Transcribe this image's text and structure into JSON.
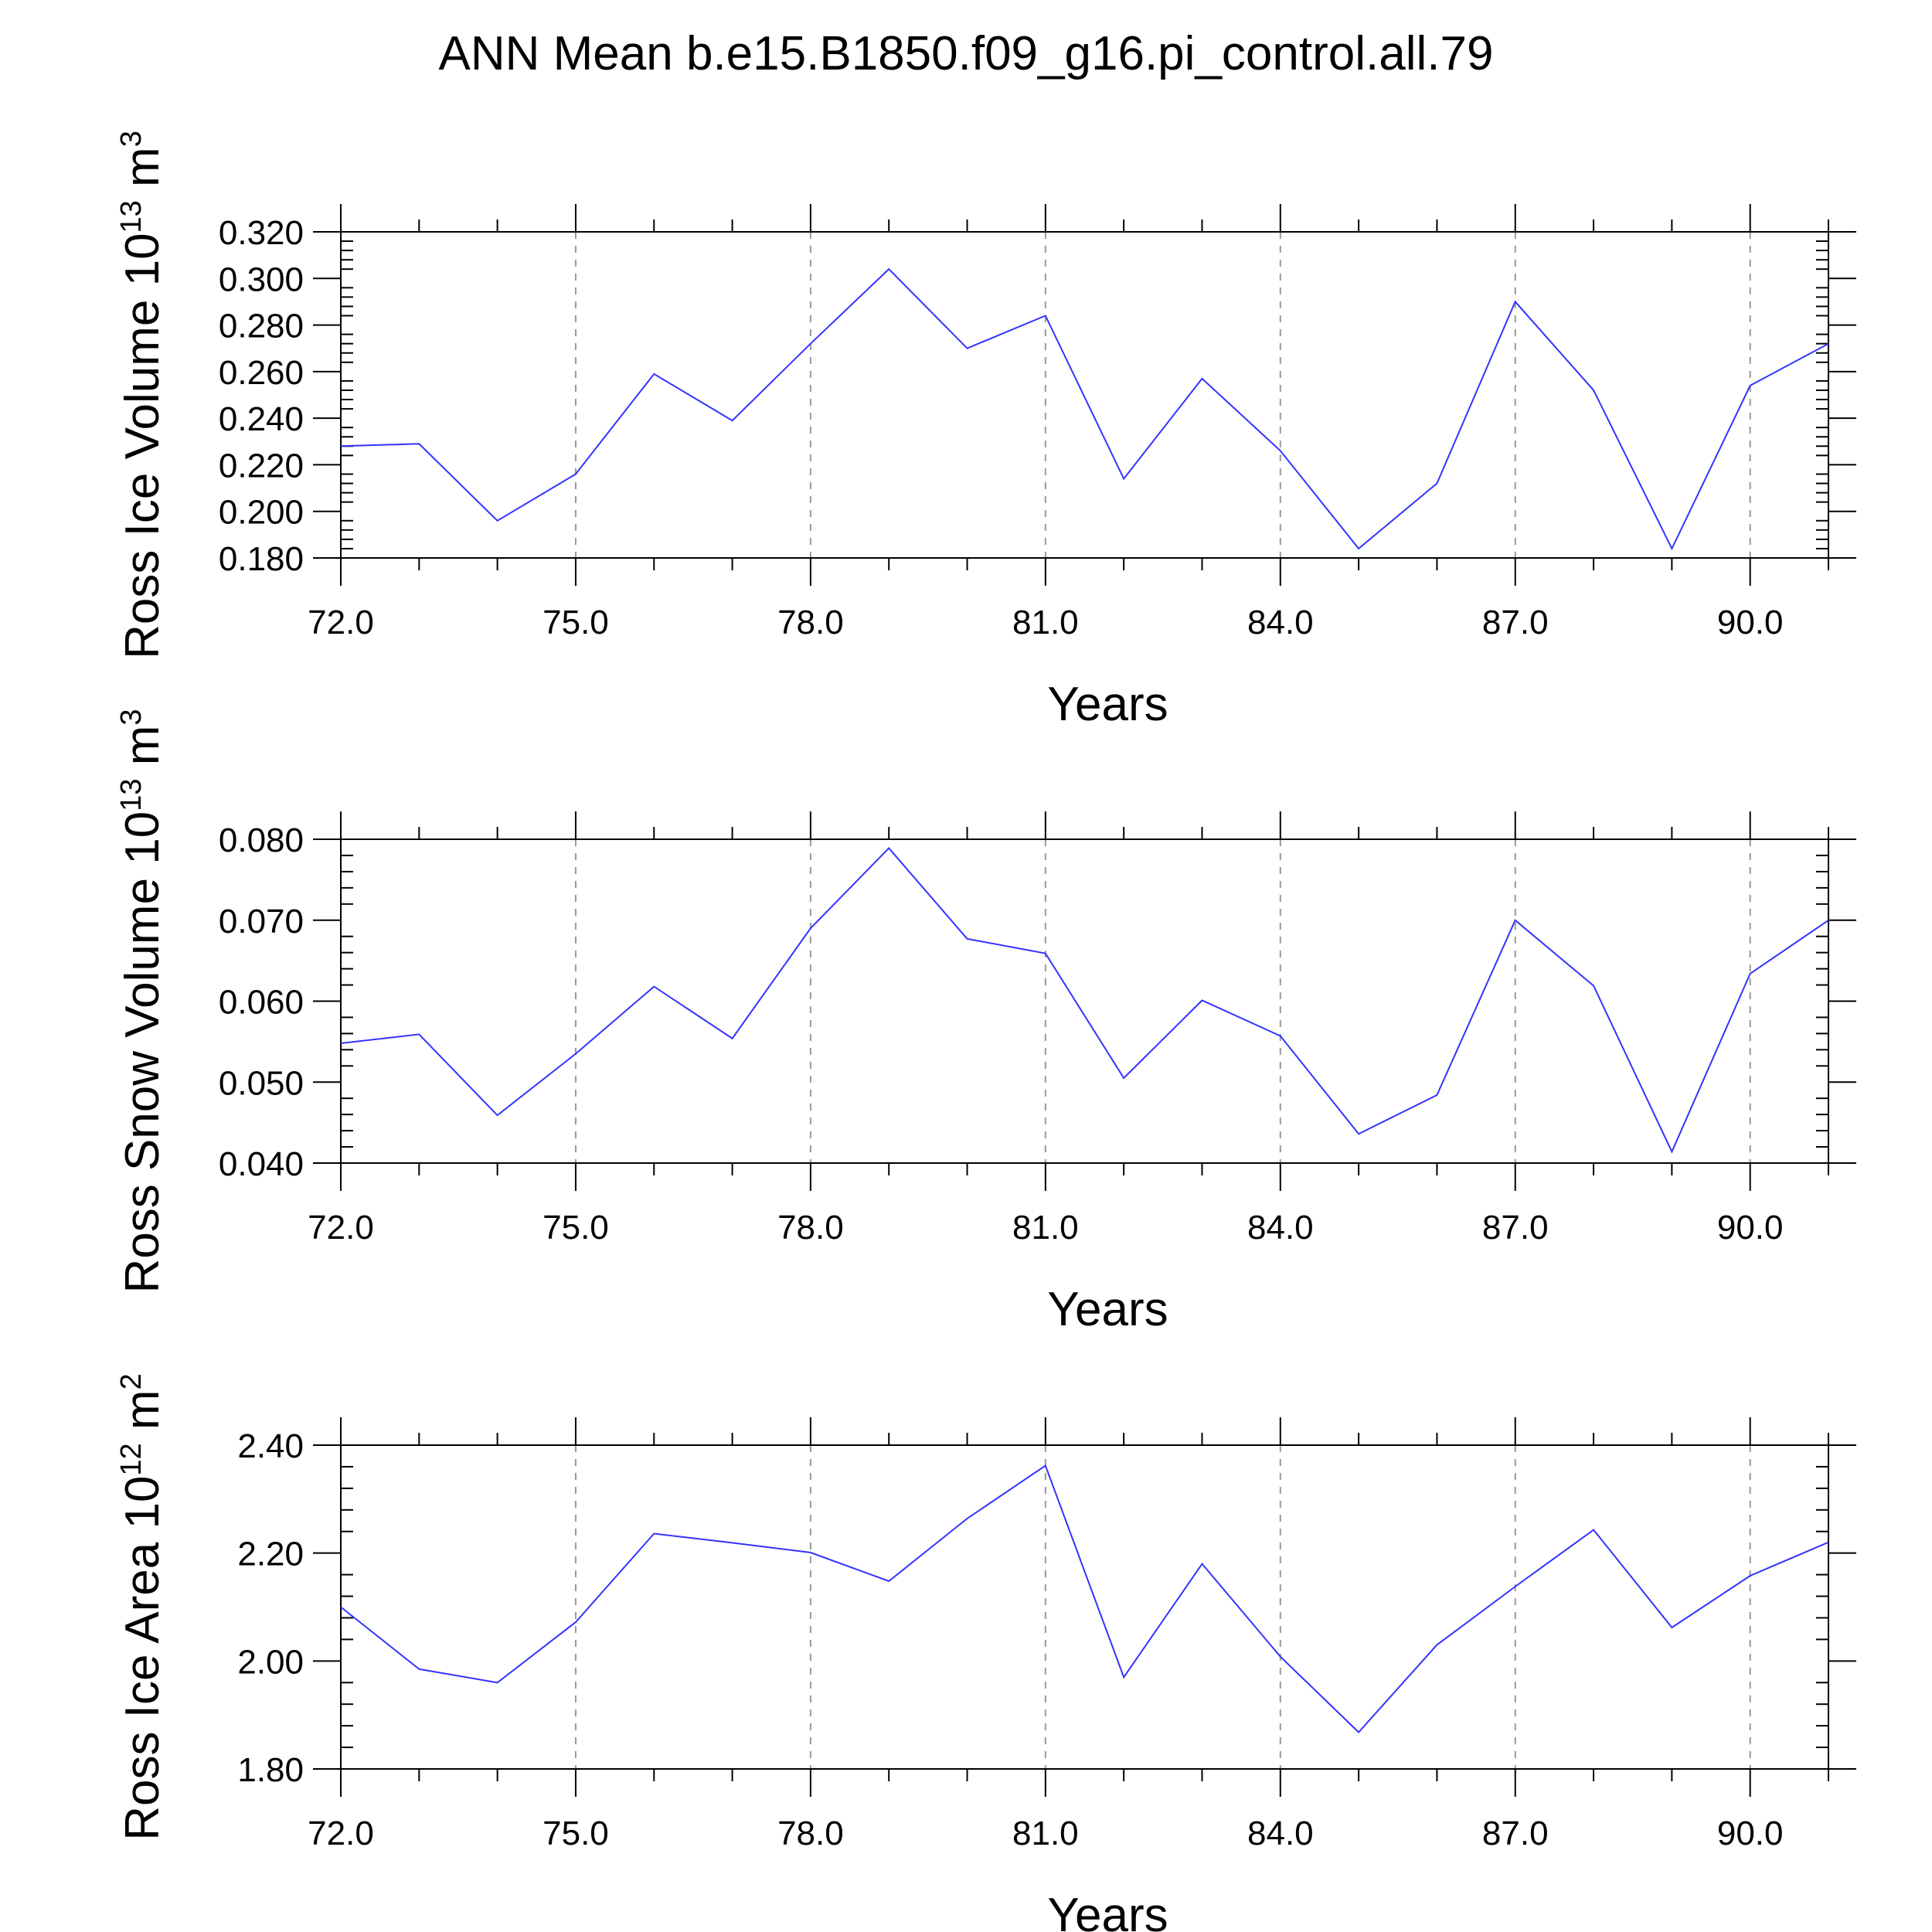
{
  "title": "ANN Mean b.e15.B1850.f09_g16.pi_control.all.79",
  "line_color": "#3333ff",
  "grid_color": "#999999",
  "chart_data": [
    {
      "type": "line",
      "title": "ANN Mean b.e15.B1850.f09_g16.pi_control.all.79",
      "ylabel_parts": {
        "pre": "Ross Ice Volume 10",
        "exp": "13",
        "unit": " m",
        "unit_exp": "3"
      },
      "xlabel": "Years",
      "xlim": [
        72,
        91
      ],
      "ylim": [
        0.18,
        0.32
      ],
      "y_ticks": [
        "0.180",
        "0.200",
        "0.220",
        "0.240",
        "0.260",
        "0.280",
        "0.300",
        "0.320"
      ],
      "x_ticks": [
        "72.0",
        "75.0",
        "78.0",
        "81.0",
        "84.0",
        "87.0",
        "90.0"
      ],
      "grid": "vertical dashed at major x ticks",
      "series": [
        {
          "x": [
            72,
            73,
            74,
            75,
            76,
            77,
            78,
            79,
            80,
            81,
            82,
            83,
            84,
            85,
            86,
            87,
            88,
            89,
            90,
            91
          ],
          "values": [
            0.228,
            0.229,
            0.196,
            0.216,
            0.259,
            0.239,
            0.272,
            0.304,
            0.27,
            0.284,
            0.214,
            0.257,
            0.226,
            0.184,
            0.212,
            0.29,
            0.252,
            0.184,
            0.254,
            0.272
          ]
        }
      ]
    },
    {
      "type": "line",
      "ylabel_parts": {
        "pre": "Ross Snow Volume 10",
        "exp": "13",
        "unit": " m",
        "unit_exp": "3"
      },
      "xlabel": "Years",
      "xlim": [
        72,
        91
      ],
      "ylim": [
        0.04,
        0.08
      ],
      "y_ticks": [
        "0.040",
        "0.050",
        "0.060",
        "0.070",
        "0.080"
      ],
      "x_ticks": [
        "72.0",
        "75.0",
        "78.0",
        "81.0",
        "84.0",
        "87.0",
        "90.0"
      ],
      "grid": "vertical dashed at major x ticks",
      "series": [
        {
          "x": [
            72,
            73,
            74,
            75,
            76,
            77,
            78,
            79,
            80,
            81,
            82,
            83,
            84,
            85,
            86,
            87,
            88,
            89,
            90,
            91
          ],
          "values": [
            0.0548,
            0.0559,
            0.0459,
            0.0535,
            0.0618,
            0.0554,
            0.069,
            0.0789,
            0.0677,
            0.0659,
            0.0505,
            0.0601,
            0.0557,
            0.0436,
            0.0484,
            0.07,
            0.0619,
            0.0414,
            0.0634,
            0.07
          ]
        }
      ]
    },
    {
      "type": "line",
      "ylabel_parts": {
        "pre": "Ross Ice Area 10",
        "exp": "12",
        "unit": " m",
        "unit_exp": "2"
      },
      "xlabel": "Years",
      "xlim": [
        72,
        91
      ],
      "ylim": [
        1.8,
        2.4
      ],
      "y_ticks": [
        "1.80",
        "2.00",
        "2.20",
        "2.40"
      ],
      "x_ticks": [
        "72.0",
        "75.0",
        "78.0",
        "81.0",
        "84.0",
        "87.0",
        "90.0"
      ],
      "grid": "vertical dashed at major x ticks",
      "series": [
        {
          "x": [
            72,
            73,
            74,
            75,
            76,
            77,
            78,
            79,
            80,
            81,
            82,
            83,
            84,
            85,
            86,
            87,
            88,
            89,
            90,
            91
          ],
          "values": [
            2.1,
            1.985,
            1.96,
            2.072,
            2.236,
            2.219,
            2.201,
            2.148,
            2.264,
            2.362,
            1.97,
            2.18,
            2.008,
            1.868,
            2.03,
            2.138,
            2.243,
            2.062,
            2.158,
            2.22
          ]
        }
      ]
    }
  ]
}
